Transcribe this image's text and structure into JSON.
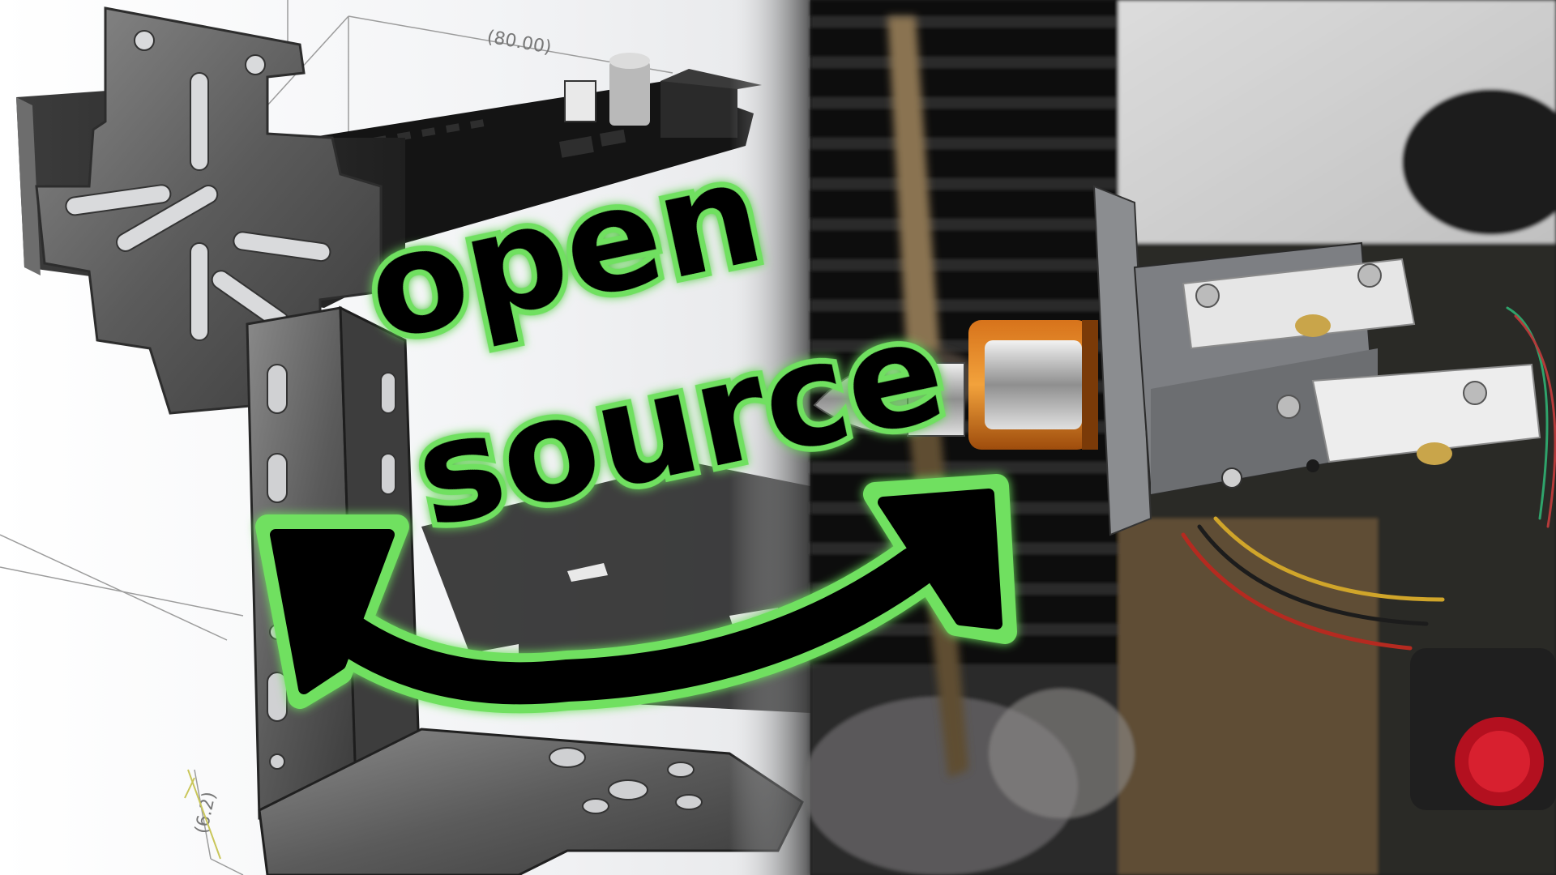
{
  "cad_view": {
    "dimension_top": "(80.00)",
    "dimension_bottom": "(6.2)"
  },
  "overlay": {
    "word_1": "open",
    "word_2": "source",
    "glow_color": "#6fe060",
    "ink_color": "#000000"
  },
  "photo": {
    "subject": "motor-thrust-test-stand"
  }
}
